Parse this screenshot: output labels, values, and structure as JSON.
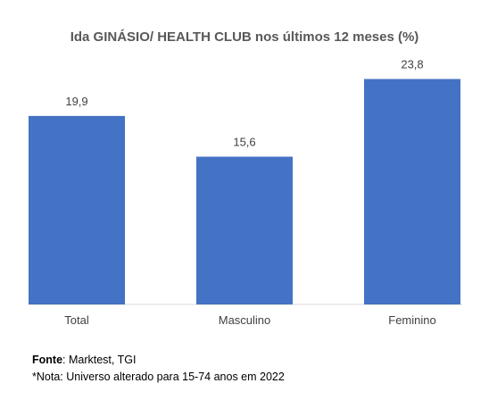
{
  "chart_data": {
    "type": "bar",
    "title": "Ida GINÁSIO/ HEALTH CLUB nos últimos 12 meses (%)",
    "categories": [
      "Total",
      "Masculino",
      "Feminino"
    ],
    "values": [
      19.9,
      15.6,
      23.8
    ],
    "data_labels": [
      "19,9",
      "15,6",
      "23,8"
    ],
    "xlabel": "",
    "ylabel": "",
    "ylim": [
      0,
      24.6
    ],
    "grid": false,
    "legend": "none",
    "colors": {
      "bar": "#4472C4"
    }
  },
  "footer": {
    "source_label": "Fonte",
    "source_text": ": Marktest, TGI",
    "note": "*Nota: Universo alterado para 15-74 anos em 2022"
  }
}
